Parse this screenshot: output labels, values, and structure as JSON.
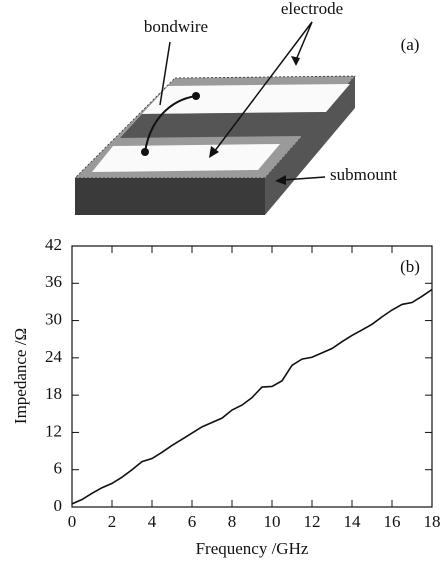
{
  "diagram": {
    "panel_label": "(a)",
    "labels": {
      "bondwire": "bondwire",
      "electrode": "electrode",
      "submount": "submount"
    }
  },
  "chart_data": {
    "type": "line",
    "annotation": "(b)",
    "x_label": "Frequency /GHz",
    "y_label": "Impedance /Ω",
    "x": [
      0,
      0.5,
      1,
      1.5,
      2,
      2.5,
      3,
      3.5,
      4,
      4.5,
      5,
      5.5,
      6,
      6.5,
      7,
      7.5,
      8,
      8.5,
      9,
      9.5,
      10,
      10.5,
      11,
      11.5,
      12,
      12.5,
      13,
      13.5,
      14,
      14.5,
      15,
      15.5,
      16,
      16.5,
      17,
      17.5,
      18
    ],
    "values": [
      0.5,
      1.2,
      2.2,
      3.1,
      3.8,
      4.8,
      6.0,
      7.3,
      7.8,
      8.8,
      9.9,
      10.9,
      11.9,
      12.9,
      13.6,
      14.3,
      15.6,
      16.4,
      17.6,
      19.3,
      19.4,
      20.3,
      22.8,
      23.8,
      24.1,
      24.8,
      25.5,
      26.6,
      27.6,
      28.5,
      29.4,
      30.6,
      31.7,
      32.6,
      32.9,
      33.9,
      35.0
    ],
    "color": "#111111",
    "xlim": [
      0,
      18
    ],
    "xticks": [
      0,
      2,
      4,
      6,
      8,
      10,
      12,
      14,
      16,
      18
    ],
    "ylim": [
      0,
      42
    ],
    "yticks": [
      0,
      6,
      12,
      18,
      24,
      30,
      36,
      42
    ]
  }
}
